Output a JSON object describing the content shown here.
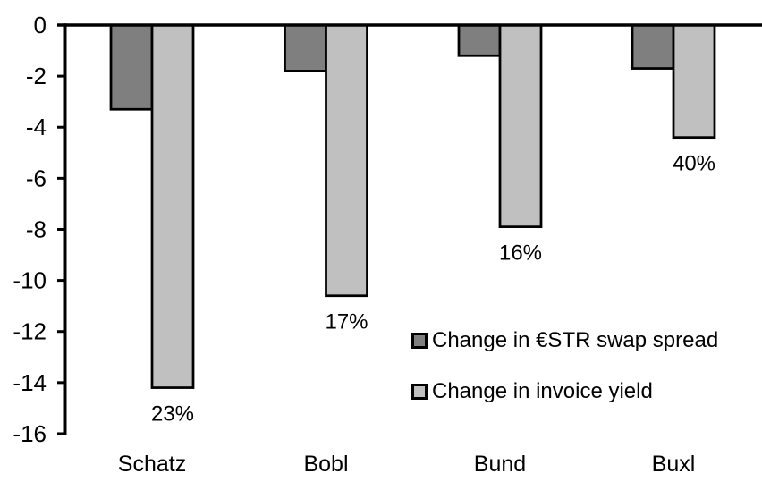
{
  "chart_data": {
    "type": "bar",
    "title": "",
    "xlabel": "",
    "ylabel": "",
    "categories": [
      "Schatz",
      "Bobl",
      "Bund",
      "Buxl"
    ],
    "series": [
      {
        "name": "Change in €STR swap spread",
        "color": "#7F7F7F",
        "values": [
          -3.3,
          -1.8,
          -1.2,
          -1.7
        ]
      },
      {
        "name": "Change in invoice yield",
        "color": "#C0C0C0",
        "values": [
          -14.2,
          -10.6,
          -7.9,
          -4.4
        ],
        "data_labels": [
          "23%",
          "17%",
          "16%",
          "40%"
        ]
      }
    ],
    "y_axis": {
      "min": -16,
      "max": 0,
      "tick_step": 2,
      "tick_labels": [
        "0",
        "-2",
        "-4",
        "-6",
        "-8",
        "-10",
        "-12",
        "-14",
        "-16"
      ]
    },
    "grid": false,
    "legend_position": "inside-right",
    "bar_border_color": "#000000",
    "axis_color": "#000000",
    "text_color": "#000000"
  }
}
